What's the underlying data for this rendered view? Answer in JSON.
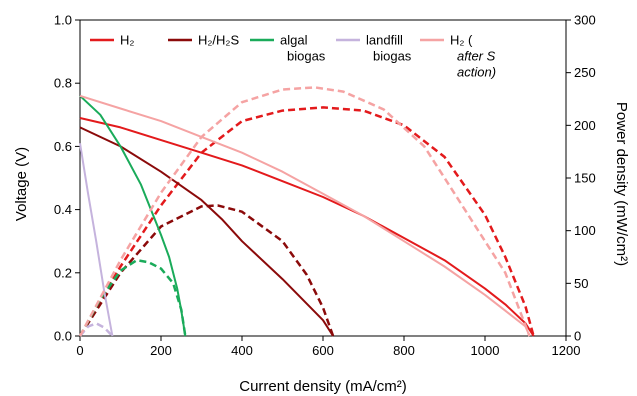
{
  "chart_data": {
    "type": "line",
    "xlabel": "Current density (mA/cm²)",
    "ylabel_left": "Voltage (V)",
    "ylabel_right": "Power density (mW/cm²)",
    "xlim": [
      0,
      1200
    ],
    "ylim_left": [
      0,
      1.0
    ],
    "ylim_right": [
      0,
      300
    ],
    "x_ticks": [
      "0",
      "200",
      "400",
      "600",
      "800",
      "1000",
      "1200"
    ],
    "y_left_ticks": [
      "0.0",
      "0.2",
      "0.4",
      "0.6",
      "0.8",
      "1.0"
    ],
    "y_right_ticks": [
      "0",
      "50",
      "100",
      "150",
      "200",
      "250",
      "300"
    ],
    "grid": false,
    "legend_position": "top",
    "legend": [
      {
        "text": "H₂",
        "lines": [
          "H₂"
        ],
        "italic": false
      },
      {
        "text": "H₂/H₂S",
        "lines": [
          "H₂/H₂S"
        ],
        "italic": false
      },
      {
        "text": "algal biogas",
        "lines": [
          "algal",
          "biogas"
        ],
        "italic": false
      },
      {
        "text": "landfill biogas",
        "lines": [
          "landfill",
          "biogas"
        ],
        "italic": false
      },
      {
        "text": "H₂ (after S action)",
        "lines": [
          "H₂ (",
          "after S",
          "action)"
        ],
        "italic": true
      }
    ],
    "series": [
      {
        "name": "H₂",
        "color": "#e31a1c",
        "voltage": [
          [
            0,
            0.69
          ],
          [
            100,
            0.66
          ],
          [
            200,
            0.62
          ],
          [
            300,
            0.58
          ],
          [
            400,
            0.54
          ],
          [
            500,
            0.49
          ],
          [
            600,
            0.44
          ],
          [
            700,
            0.38
          ],
          [
            800,
            0.31
          ],
          [
            900,
            0.24
          ],
          [
            1000,
            0.15
          ],
          [
            1050,
            0.1
          ],
          [
            1100,
            0.04
          ],
          [
            1120,
            0.0
          ]
        ],
        "power": [
          [
            0,
            0
          ],
          [
            100,
            66
          ],
          [
            200,
            124
          ],
          [
            300,
            174
          ],
          [
            400,
            204
          ],
          [
            500,
            214
          ],
          [
            600,
            217
          ],
          [
            700,
            214
          ],
          [
            800,
            200
          ],
          [
            900,
            170
          ],
          [
            1000,
            115
          ],
          [
            1050,
            75
          ],
          [
            1100,
            28
          ],
          [
            1120,
            0
          ]
        ]
      },
      {
        "name": "H₂/H₂S",
        "color": "#8b0a0a",
        "voltage": [
          [
            0,
            0.66
          ],
          [
            100,
            0.6
          ],
          [
            200,
            0.52
          ],
          [
            300,
            0.43
          ],
          [
            350,
            0.37
          ],
          [
            400,
            0.3
          ],
          [
            500,
            0.18
          ],
          [
            600,
            0.05
          ],
          [
            625,
            0.0
          ]
        ],
        "power": [
          [
            0,
            0
          ],
          [
            100,
            60
          ],
          [
            200,
            104
          ],
          [
            300,
            123
          ],
          [
            340,
            124
          ],
          [
            400,
            118
          ],
          [
            500,
            90
          ],
          [
            560,
            58
          ],
          [
            600,
            27
          ],
          [
            625,
            0
          ]
        ]
      },
      {
        "name": "algal biogas",
        "color": "#1aab5a",
        "voltage": [
          [
            0,
            0.76
          ],
          [
            50,
            0.7
          ],
          [
            100,
            0.6
          ],
          [
            150,
            0.48
          ],
          [
            200,
            0.32
          ],
          [
            220,
            0.25
          ],
          [
            240,
            0.15
          ],
          [
            250,
            0.08
          ],
          [
            260,
            0.0
          ]
        ],
        "power": [
          [
            0,
            0
          ],
          [
            50,
            35
          ],
          [
            100,
            62
          ],
          [
            140,
            72
          ],
          [
            170,
            70
          ],
          [
            200,
            64
          ],
          [
            230,
            50
          ],
          [
            250,
            25
          ],
          [
            260,
            0
          ]
        ]
      },
      {
        "name": "landfill biogas",
        "color": "#c5b3dd",
        "voltage": [
          [
            0,
            0.61
          ],
          [
            20,
            0.45
          ],
          [
            40,
            0.3
          ],
          [
            60,
            0.14
          ],
          [
            80,
            0.0
          ]
        ],
        "power": [
          [
            0,
            0
          ],
          [
            20,
            9
          ],
          [
            40,
            12
          ],
          [
            60,
            8
          ],
          [
            80,
            0
          ]
        ]
      },
      {
        "name": "H₂ (after S action)",
        "color": "#f5a3a3",
        "voltage": [
          [
            0,
            0.76
          ],
          [
            100,
            0.72
          ],
          [
            200,
            0.68
          ],
          [
            300,
            0.63
          ],
          [
            400,
            0.58
          ],
          [
            500,
            0.52
          ],
          [
            600,
            0.45
          ],
          [
            700,
            0.38
          ],
          [
            800,
            0.3
          ],
          [
            900,
            0.22
          ],
          [
            1000,
            0.13
          ],
          [
            1050,
            0.08
          ],
          [
            1100,
            0.03
          ],
          [
            1110,
            0.0
          ]
        ],
        "power": [
          [
            0,
            0
          ],
          [
            100,
            72
          ],
          [
            200,
            136
          ],
          [
            300,
            189
          ],
          [
            400,
            222
          ],
          [
            500,
            234
          ],
          [
            580,
            236
          ],
          [
            650,
            232
          ],
          [
            750,
            215
          ],
          [
            850,
            180
          ],
          [
            950,
            120
          ],
          [
            1050,
            60
          ],
          [
            1110,
            0
          ]
        ]
      }
    ]
  }
}
